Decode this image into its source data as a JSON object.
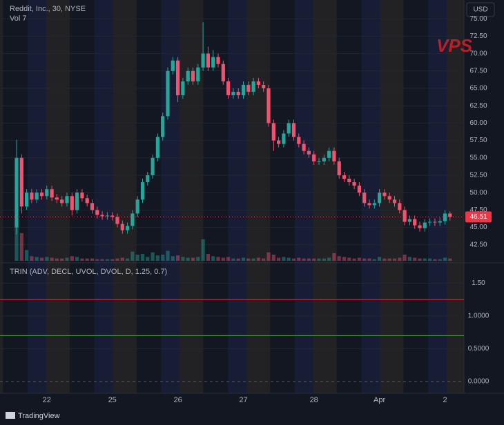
{
  "chart_data": [
    {
      "type": "candlestick",
      "title": "Reddit, Inc., 30, NYSE",
      "volume_legend": "Vol  7",
      "categories": [
        null,
        null,
        null,
        null,
        null,
        null,
        "22",
        null,
        null,
        null,
        null,
        null,
        null,
        null,
        null,
        null,
        null,
        null,
        null,
        "25",
        null,
        null,
        null,
        null,
        null,
        null,
        null,
        null,
        null,
        null,
        null,
        null,
        "26",
        null,
        null,
        null,
        null,
        null,
        null,
        null,
        null,
        null,
        null,
        null,
        null,
        "27",
        null,
        null,
        null,
        null,
        null,
        null,
        null,
        null,
        null,
        null,
        null,
        null,
        null,
        "28",
        null,
        null,
        null,
        null,
        null,
        null,
        null,
        null,
        null,
        null,
        null,
        null,
        "Apr",
        null,
        null,
        null,
        null,
        null,
        null,
        null,
        null,
        null,
        null,
        null,
        null,
        "2",
        null
      ],
      "series": [
        {
          "up_color": "#26a69a",
          "down_color": "#ef5370",
          "open": [
            45,
            55,
            48,
            50,
            49,
            50,
            49.5,
            50.5,
            49.3,
            49,
            48.5,
            49.5,
            47.5,
            50,
            49.2,
            48.5,
            47.5,
            46.8,
            46.6,
            46.7,
            46.5,
            45.5,
            44.6,
            45.2,
            47,
            49,
            51.5,
            52.5,
            55,
            58,
            61,
            67.5,
            69,
            64,
            66,
            67.5,
            66,
            68,
            70,
            68,
            69.5,
            68.5,
            66,
            64,
            64.5,
            64,
            65.5,
            64.5,
            66,
            65.5,
            65,
            60,
            57.5,
            57,
            58.5,
            60,
            58,
            57,
            56,
            55.5,
            54.5,
            54.5,
            55,
            56,
            54.5,
            52.5,
            52,
            51.5,
            51,
            50,
            48.5,
            48.2,
            48.5,
            50,
            49.5,
            49,
            48.5,
            47.5,
            45.8,
            46.2,
            45.3,
            44.9,
            45.7,
            45.8,
            45.7,
            45.9,
            47
          ],
          "high": [
            57.6,
            55.5,
            50.5,
            50.5,
            50.5,
            50.5,
            51,
            51,
            49.8,
            49.5,
            50,
            50,
            50.5,
            50.5,
            49.7,
            49,
            48,
            47.3,
            47.2,
            47.2,
            47,
            46,
            45.7,
            47.5,
            49.5,
            52,
            53,
            55.5,
            58.5,
            61.5,
            68,
            69.5,
            69.5,
            66.5,
            68,
            68,
            68.5,
            74.5,
            71,
            70.5,
            70,
            69,
            66.5,
            65,
            65,
            66,
            66,
            66.5,
            66.5,
            66,
            65.5,
            60.5,
            58,
            59,
            60.5,
            60.5,
            58.5,
            57.5,
            56.5,
            56,
            55,
            55.5,
            56.5,
            56.5,
            55,
            53,
            52.5,
            52,
            51.5,
            50.5,
            49,
            49,
            50.5,
            50.5,
            50,
            49.5,
            49,
            48,
            46.7,
            46.7,
            45.8,
            46.2,
            46.3,
            46.3,
            46.4,
            47.5,
            47.3
          ],
          "low": [
            44,
            47,
            47.5,
            48.5,
            48.5,
            49,
            49,
            48.8,
            48.5,
            48,
            48,
            46.7,
            47,
            48.7,
            48,
            47,
            46.3,
            46.1,
            46.1,
            46,
            45,
            44.1,
            44.1,
            44.7,
            46.5,
            48.5,
            51,
            52,
            54.5,
            57.5,
            60.5,
            67,
            63,
            63.5,
            65.5,
            65.5,
            65.5,
            67.5,
            67.5,
            67.5,
            68,
            65.5,
            63.5,
            63.5,
            63.5,
            63.5,
            64,
            64,
            65,
            64.5,
            59.5,
            56,
            56.5,
            56.5,
            58,
            57.5,
            56.5,
            55.5,
            55,
            54,
            54,
            54,
            54.5,
            54,
            52,
            51.5,
            51,
            50.5,
            49.5,
            48,
            47.7,
            47.7,
            48,
            49,
            48.5,
            48,
            47,
            45.3,
            45.3,
            44.8,
            44.4,
            44.4,
            45.2,
            45.2,
            45.2,
            45.4,
            46
          ],
          "close": [
            55,
            48,
            50,
            49,
            50,
            49.5,
            50.5,
            49.3,
            49,
            48.5,
            49.5,
            47.5,
            50,
            49.2,
            48.5,
            47.5,
            46.8,
            46.6,
            46.7,
            46.5,
            45.5,
            44.6,
            45.2,
            47,
            49,
            51.5,
            52.5,
            55,
            58,
            61,
            67.5,
            69,
            64,
            66,
            67.5,
            66,
            68,
            70,
            68,
            69.5,
            68.5,
            66,
            64,
            64.5,
            64,
            65.5,
            64.5,
            66,
            65.5,
            65,
            60,
            57.5,
            57,
            58.5,
            60,
            58,
            57,
            56,
            55.5,
            54.5,
            54.5,
            55,
            56,
            54.5,
            52.5,
            52,
            51.5,
            51,
            50,
            48.5,
            48.2,
            48.5,
            50,
            49.5,
            49,
            48.5,
            47.5,
            45.8,
            46.2,
            45.3,
            44.9,
            45.7,
            45.8,
            45.7,
            45.9,
            47,
            46.51
          ],
          "volume": [
            5.2,
            3.6,
            1.4,
            0.6,
            0.5,
            0.4,
            0.5,
            0.4,
            0.3,
            0.3,
            0.4,
            0.6,
            0.5,
            0.3,
            0.3,
            0.3,
            0.2,
            0.2,
            0.2,
            0.2,
            0.3,
            0.4,
            0.3,
            1.2,
            0.8,
            0.9,
            0.5,
            1.1,
            0.7,
            0.8,
            1.3,
            0.6,
            0.7,
            0.5,
            0.4,
            0.4,
            0.5,
            2.8,
            0.9,
            0.6,
            0.5,
            0.4,
            0.5,
            0.3,
            0.3,
            0.4,
            0.3,
            0.3,
            0.4,
            0.3,
            1.1,
            0.8,
            0.4,
            0.5,
            0.4,
            0.3,
            0.4,
            0.3,
            0.3,
            0.3,
            0.3,
            0.3,
            0.4,
            1.0,
            0.6,
            0.5,
            0.4,
            0.3,
            0.4,
            0.3,
            0.3,
            0.2,
            0.5,
            0.3,
            0.3,
            0.3,
            0.4,
            0.8,
            0.5,
            0.4,
            0.3,
            0.3,
            0.3,
            0.2,
            0.2,
            0.4,
            0.3
          ]
        }
      ],
      "ylim": [
        40,
        77.7
      ],
      "yticks": [
        {
          "value": 42.5,
          "label": "42.50"
        },
        {
          "value": 45,
          "label": "45.00"
        },
        {
          "value": 47.5,
          "label": "47.50"
        },
        {
          "value": 50,
          "label": "50.00"
        },
        {
          "value": 52.5,
          "label": "52.50"
        },
        {
          "value": 55,
          "label": "55.00"
        },
        {
          "value": 57.5,
          "label": "57.50"
        },
        {
          "value": 60,
          "label": "60.00"
        },
        {
          "value": 62.5,
          "label": "62.50"
        },
        {
          "value": 65,
          "label": "65.00"
        },
        {
          "value": 67.5,
          "label": "67.50"
        },
        {
          "value": 70,
          "label": "70.00"
        },
        {
          "value": 72.5,
          "label": "72.50"
        },
        {
          "value": 75,
          "label": "75.00"
        }
      ],
      "grid": true
    },
    {
      "type": "indicator",
      "title": "TRIN (ADV, DECL, UVOL, DVOL, D, 1.25, 0.7)",
      "bands": [
        {
          "value": 1.25,
          "color": "#c2273a"
        },
        {
          "value": 0.7,
          "color": "#3f8f3a"
        }
      ],
      "ylim": [
        -0.18,
        1.8
      ],
      "yticks": [
        {
          "value": 0,
          "label": "0.0000"
        },
        {
          "value": 0.5,
          "label": "0.5000"
        },
        {
          "value": 1,
          "label": "1.0000"
        },
        {
          "value": 1.5,
          "label": "1.50"
        }
      ],
      "grid": true
    }
  ],
  "header": {
    "currency_button": "USD",
    "watermark": "VPS"
  },
  "footer": {
    "brand": "TradingView"
  }
}
